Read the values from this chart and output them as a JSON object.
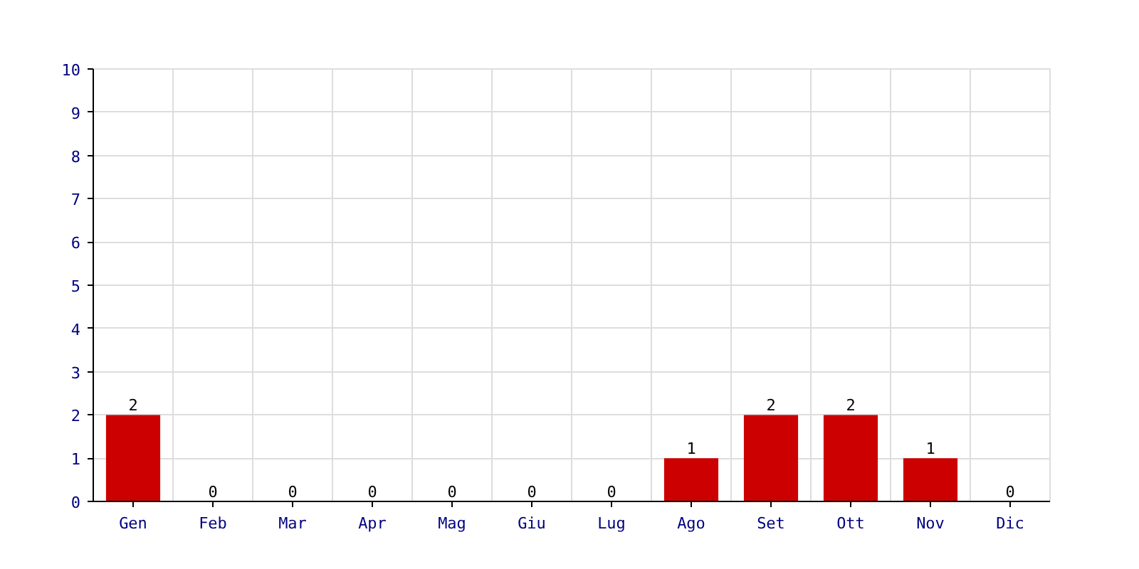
{
  "chart_data": {
    "type": "bar",
    "categories": [
      "Gen",
      "Feb",
      "Mar",
      "Apr",
      "Mag",
      "Giu",
      "Lug",
      "Ago",
      "Set",
      "Ott",
      "Nov",
      "Dic"
    ],
    "values": [
      2,
      0,
      0,
      0,
      0,
      0,
      0,
      1,
      2,
      2,
      1,
      0
    ],
    "color": "#cc0000",
    "ylim": [
      0,
      10
    ],
    "yticks": [
      0,
      1,
      2,
      3,
      4,
      5,
      6,
      7,
      8,
      9,
      10
    ],
    "grid": true,
    "data_labels": true
  }
}
